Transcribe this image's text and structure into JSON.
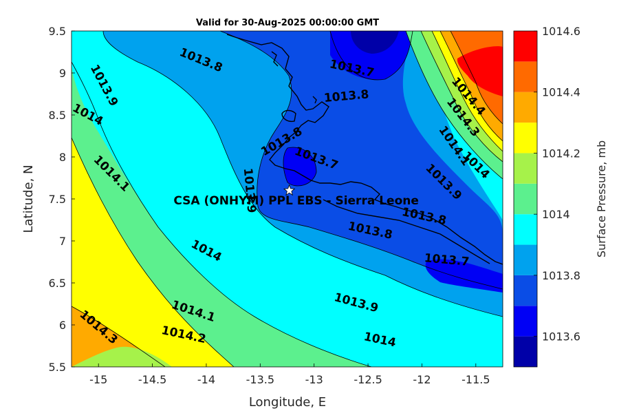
{
  "chart_data": {
    "type": "contour-map",
    "title": "Valid for 30-Aug-2025 00:00:00 GMT",
    "xlabel": "Longitude, E",
    "ylabel": "Latitude, N",
    "xlim": [
      -15.25,
      -11.25
    ],
    "ylim": [
      5.5,
      9.5
    ],
    "xticks": [
      "-15",
      "-14.5",
      "-14",
      "-13.5",
      "-13",
      "-12.5",
      "-12",
      "-11.5"
    ],
    "yticks": [
      "5.5",
      "6",
      "6.5",
      "7",
      "7.5",
      "8",
      "8.5",
      "9",
      "9.5"
    ],
    "colorbar": {
      "label": "Surface Pressure, mb",
      "tick_labels": [
        "1013.6",
        "1013.8",
        "1014",
        "1014.2",
        "1014.4",
        "1014.6"
      ],
      "levels": [
        {
          "value": 1013.5,
          "color": "#0000a8"
        },
        {
          "value": 1013.6,
          "color": "#0000f5"
        },
        {
          "value": 1013.7,
          "color": "#0a4de6"
        },
        {
          "value": 1013.8,
          "color": "#00a2ee"
        },
        {
          "value": 1013.9,
          "color": "#00ffff"
        },
        {
          "value": 1014.0,
          "color": "#5cf08e"
        },
        {
          "value": 1014.1,
          "color": "#a6f24a"
        },
        {
          "value": 1014.2,
          "color": "#ffff00"
        },
        {
          "value": 1014.3,
          "color": "#ffaa00"
        },
        {
          "value": 1014.4,
          "color": "#ff6a00"
        },
        {
          "value": 1014.5,
          "color": "#ff0000"
        },
        {
          "value": 1014.6,
          "color": "#a80000"
        }
      ]
    },
    "contour_labels": [
      {
        "text": "1013.8",
        "lon": -14.05,
        "lat": 9.15,
        "rot": 22
      },
      {
        "text": "1013.7",
        "lon": -12.65,
        "lat": 9.05,
        "rot": 12
      },
      {
        "text": "1013.9",
        "lon": -14.95,
        "lat": 8.85,
        "rot": 62
      },
      {
        "text": "1013.8",
        "lon": -12.7,
        "lat": 8.72,
        "rot": -5
      },
      {
        "text": "1014",
        "lon": -15.1,
        "lat": 8.5,
        "rot": 28
      },
      {
        "text": "1014.4",
        "lon": -11.57,
        "lat": 8.72,
        "rot": 50
      },
      {
        "text": "1014.3",
        "lon": -11.62,
        "lat": 8.47,
        "rot": 52
      },
      {
        "text": "1013.8",
        "lon": -13.3,
        "lat": 8.18,
        "rot": -30
      },
      {
        "text": "1014.1",
        "lon": -11.7,
        "lat": 8.13,
        "rot": 55
      },
      {
        "text": "1013.7",
        "lon": -12.98,
        "lat": 7.98,
        "rot": 20
      },
      {
        "text": "1014.1",
        "lon": -14.88,
        "lat": 7.8,
        "rot": 45
      },
      {
        "text": "1014",
        "lon": -11.5,
        "lat": 7.9,
        "rot": 45
      },
      {
        "text": "1013.9",
        "lon": -13.6,
        "lat": 7.6,
        "rot": 85
      },
      {
        "text": "1013.9",
        "lon": -11.8,
        "lat": 7.7,
        "rot": 45
      },
      {
        "text": "1013.8",
        "lon": -11.98,
        "lat": 7.29,
        "rot": 12
      },
      {
        "text": "1013.8",
        "lon": -12.48,
        "lat": 7.12,
        "rot": 12
      },
      {
        "text": "1014",
        "lon": -14.0,
        "lat": 6.88,
        "rot": 28
      },
      {
        "text": "1013.7",
        "lon": -11.77,
        "lat": 6.77,
        "rot": 5
      },
      {
        "text": "1014.1",
        "lon": -14.12,
        "lat": 6.16,
        "rot": 18
      },
      {
        "text": "1013.9",
        "lon": -12.61,
        "lat": 6.26,
        "rot": 15
      },
      {
        "text": "1014.3",
        "lon": -15.0,
        "lat": 5.97,
        "rot": 40
      },
      {
        "text": "1014.2",
        "lon": -14.21,
        "lat": 5.88,
        "rot": 12
      },
      {
        "text": "1014",
        "lon": -12.39,
        "lat": 5.82,
        "rot": 12
      }
    ],
    "station": {
      "label": "CSA (ONHYM) PPL EBS  - Sierra Leone",
      "lon": -13.23,
      "lat": 7.6
    }
  }
}
